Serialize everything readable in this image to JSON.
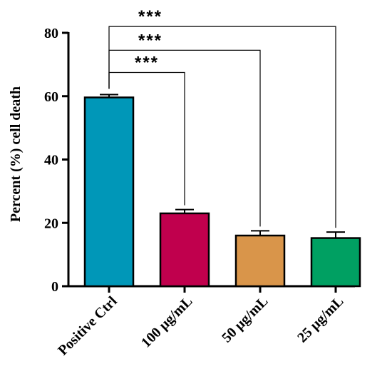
{
  "chart_data": {
    "type": "bar",
    "ylabel": "Percent (%) cell death",
    "ylim": [
      0,
      80
    ],
    "yticks": [
      0,
      20,
      40,
      60,
      80
    ],
    "categories": [
      "Positive Ctrl",
      "100 μg/mL",
      "50 μg/mL",
      "25 μg/mL"
    ],
    "values": [
      59.6,
      23.0,
      16.0,
      15.2
    ],
    "errors": [
      0.9,
      1.2,
      1.5,
      1.9
    ],
    "colors": [
      "#0097b8",
      "#c0004d",
      "#d9954a",
      "#00a062"
    ],
    "grid": false,
    "significance": [
      {
        "from": 0,
        "to": 1,
        "label": "***",
        "bracket_y": 67.5
      },
      {
        "from": 0,
        "to": 2,
        "label": "***",
        "bracket_y": 74.5
      },
      {
        "from": 0,
        "to": 3,
        "label": "***",
        "bracket_y": 82.0
      }
    ]
  }
}
